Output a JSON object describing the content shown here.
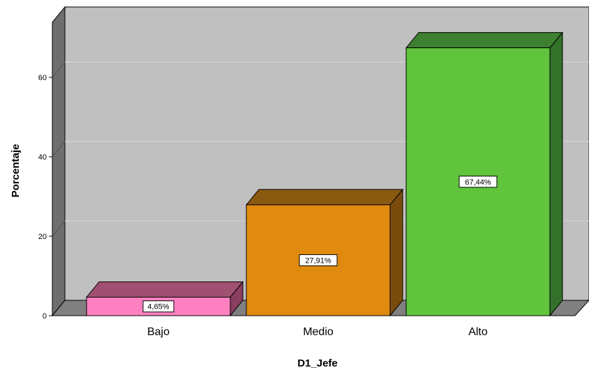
{
  "chart_data": {
    "type": "bar",
    "style": "3d",
    "categories": [
      "Bajo",
      "Medio",
      "Alto"
    ],
    "values": [
      4.65,
      27.91,
      67.44
    ],
    "data_labels": [
      "4,65%",
      "27,91%",
      "67,44%"
    ],
    "colors": {
      "bars": [
        "#ff80c0",
        "#e08a10",
        "#60c43c"
      ],
      "bars_top": [
        "#a05070",
        "#8a5a10",
        "#3c8030"
      ],
      "bars_side": [
        "#8a3e60",
        "#7a4c0c",
        "#33702a"
      ],
      "back_wall": "#c0c0c0",
      "left_wall": "#6e6e6e",
      "floor": "#808080",
      "gridline": "#d8d8d8"
    },
    "xlabel": "D1_Jefe",
    "ylabel": "Porcentaje",
    "yticks": [
      0,
      20,
      40,
      60
    ],
    "ylim": [
      0,
      75
    ],
    "grid": true,
    "legend": "none"
  }
}
